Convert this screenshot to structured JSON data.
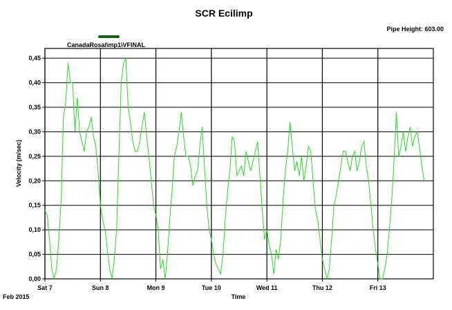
{
  "chart_data": {
    "type": "line",
    "title": "SCR Ecilimp",
    "annotation": "Pipe Height: 603.00",
    "xlabel": "Time",
    "ylabel": "Velocity (m/sec)",
    "x_sublabel": "Feb 2015",
    "ylim": [
      0,
      0.47
    ],
    "yticks": [
      0,
      0.05,
      0.1,
      0.15,
      0.2,
      0.25,
      0.3,
      0.35,
      0.4,
      0.45
    ],
    "ytick_labels": [
      "0,00",
      "0,05",
      "0,10",
      "0,15",
      "0,20",
      "0,25",
      "0,30",
      "0,35",
      "0,40",
      "0,45"
    ],
    "xlim": [
      "2015-02-07T00:00",
      "2015-02-14T00:00"
    ],
    "xticks": [
      "2015-02-07T00:00",
      "2015-02-08T00:00",
      "2015-02-09T00:00",
      "2015-02-10T00:00",
      "2015-02-11T00:00",
      "2015-02-12T00:00",
      "2015-02-13T00:00"
    ],
    "xtick_labels": [
      "Sat 7",
      "Sun 8",
      "Mon 9",
      "Tue 10",
      "Wed 11",
      "Thu 12",
      "Fri 13"
    ],
    "grid": true,
    "legend_position": "top-left",
    "series": [
      {
        "name": "CanadaRosal\\mp1\\VFINAL",
        "color": "#22dd22",
        "legend_color": "#1a5c1a",
        "points": [
          [
            "2015-02-07T00:00",
            0.14
          ],
          [
            "2015-02-07T01:00",
            0.13
          ],
          [
            "2015-02-07T02:00",
            0.08
          ],
          [
            "2015-02-07T03:00",
            0.02
          ],
          [
            "2015-02-07T04:00",
            0.0
          ],
          [
            "2015-02-07T05:00",
            0.02
          ],
          [
            "2015-02-07T06:00",
            0.08
          ],
          [
            "2015-02-07T07:00",
            0.16
          ],
          [
            "2015-02-07T08:00",
            0.33
          ],
          [
            "2015-02-07T09:00",
            0.36
          ],
          [
            "2015-02-07T10:00",
            0.44
          ],
          [
            "2015-02-07T11:00",
            0.4
          ],
          [
            "2015-02-07T12:00",
            0.4
          ],
          [
            "2015-02-07T13:00",
            0.3
          ],
          [
            "2015-02-07T14:00",
            0.37
          ],
          [
            "2015-02-07T15:00",
            0.3
          ],
          [
            "2015-02-07T16:00",
            0.28
          ],
          [
            "2015-02-07T17:00",
            0.26
          ],
          [
            "2015-02-07T18:00",
            0.3
          ],
          [
            "2015-02-07T19:00",
            0.31
          ],
          [
            "2015-02-07T20:00",
            0.33
          ],
          [
            "2015-02-07T21:00",
            0.29
          ],
          [
            "2015-02-07T22:00",
            0.27
          ],
          [
            "2015-02-07T23:00",
            0.22
          ],
          [
            "2015-02-08T00:00",
            0.15
          ],
          [
            "2015-02-08T01:00",
            0.12
          ],
          [
            "2015-02-08T02:00",
            0.1
          ],
          [
            "2015-02-08T03:00",
            0.06
          ],
          [
            "2015-02-08T04:00",
            0.02
          ],
          [
            "2015-02-08T05:00",
            0.0
          ],
          [
            "2015-02-08T06:00",
            0.04
          ],
          [
            "2015-02-08T07:00",
            0.1
          ],
          [
            "2015-02-08T08:00",
            0.25
          ],
          [
            "2015-02-08T09:00",
            0.4
          ],
          [
            "2015-02-08T10:00",
            0.44
          ],
          [
            "2015-02-08T11:00",
            0.45
          ],
          [
            "2015-02-08T12:00",
            0.35
          ],
          [
            "2015-02-08T13:00",
            0.32
          ],
          [
            "2015-02-08T14:00",
            0.28
          ],
          [
            "2015-02-08T15:00",
            0.26
          ],
          [
            "2015-02-08T16:00",
            0.26
          ],
          [
            "2015-02-08T17:00",
            0.28
          ],
          [
            "2015-02-08T18:00",
            0.31
          ],
          [
            "2015-02-08T19:00",
            0.34
          ],
          [
            "2015-02-08T20:00",
            0.29
          ],
          [
            "2015-02-08T21:00",
            0.25
          ],
          [
            "2015-02-08T22:00",
            0.2
          ],
          [
            "2015-02-08T23:00",
            0.15
          ],
          [
            "2015-02-09T00:00",
            0.13
          ],
          [
            "2015-02-09T01:00",
            0.1
          ],
          [
            "2015-02-09T02:00",
            0.02
          ],
          [
            "2015-02-09T03:00",
            0.04
          ],
          [
            "2015-02-09T04:00",
            0.0
          ],
          [
            "2015-02-09T05:00",
            0.05
          ],
          [
            "2015-02-09T06:00",
            0.12
          ],
          [
            "2015-02-09T07:00",
            0.18
          ],
          [
            "2015-02-09T08:00",
            0.25
          ],
          [
            "2015-02-09T09:00",
            0.27
          ],
          [
            "2015-02-09T10:00",
            0.3
          ],
          [
            "2015-02-09T11:00",
            0.34
          ],
          [
            "2015-02-09T12:00",
            0.29
          ],
          [
            "2015-02-09T13:00",
            0.25
          ],
          [
            "2015-02-09T14:00",
            0.25
          ],
          [
            "2015-02-09T15:00",
            0.23
          ],
          [
            "2015-02-09T16:00",
            0.19
          ],
          [
            "2015-02-09T17:00",
            0.21
          ],
          [
            "2015-02-09T18:00",
            0.22
          ],
          [
            "2015-02-09T19:00",
            0.27
          ],
          [
            "2015-02-09T20:00",
            0.31
          ],
          [
            "2015-02-09T21:00",
            0.23
          ],
          [
            "2015-02-09T22:00",
            0.15
          ],
          [
            "2015-02-09T23:00",
            0.1
          ],
          [
            "2015-02-10T00:00",
            0.08
          ],
          [
            "2015-02-10T01:00",
            0.05
          ],
          [
            "2015-02-10T02:00",
            0.03
          ],
          [
            "2015-02-10T03:00",
            0.02
          ],
          [
            "2015-02-10T04:00",
            0.01
          ],
          [
            "2015-02-10T05:00",
            0.05
          ],
          [
            "2015-02-10T06:00",
            0.12
          ],
          [
            "2015-02-10T07:00",
            0.18
          ],
          [
            "2015-02-10T08:00",
            0.22
          ],
          [
            "2015-02-10T09:00",
            0.29
          ],
          [
            "2015-02-10T10:00",
            0.28
          ],
          [
            "2015-02-10T11:00",
            0.21
          ],
          [
            "2015-02-10T12:00",
            0.22
          ],
          [
            "2015-02-10T13:00",
            0.23
          ],
          [
            "2015-02-10T14:00",
            0.21
          ],
          [
            "2015-02-10T15:00",
            0.26
          ],
          [
            "2015-02-10T16:00",
            0.24
          ],
          [
            "2015-02-10T17:00",
            0.22
          ],
          [
            "2015-02-10T18:00",
            0.24
          ],
          [
            "2015-02-10T19:00",
            0.26
          ],
          [
            "2015-02-10T20:00",
            0.28
          ],
          [
            "2015-02-10T21:00",
            0.21
          ],
          [
            "2015-02-10T22:00",
            0.14
          ],
          [
            "2015-02-10T23:00",
            0.08
          ],
          [
            "2015-02-11T00:00",
            0.1
          ],
          [
            "2015-02-11T01:00",
            0.07
          ],
          [
            "2015-02-11T02:00",
            0.05
          ],
          [
            "2015-02-11T03:00",
            0.01
          ],
          [
            "2015-02-11T04:00",
            0.06
          ],
          [
            "2015-02-11T05:00",
            0.04
          ],
          [
            "2015-02-11T06:00",
            0.08
          ],
          [
            "2015-02-11T07:00",
            0.16
          ],
          [
            "2015-02-11T08:00",
            0.22
          ],
          [
            "2015-02-11T09:00",
            0.26
          ],
          [
            "2015-02-11T10:00",
            0.32
          ],
          [
            "2015-02-11T11:00",
            0.27
          ],
          [
            "2015-02-11T12:00",
            0.22
          ],
          [
            "2015-02-11T13:00",
            0.24
          ],
          [
            "2015-02-11T14:00",
            0.21
          ],
          [
            "2015-02-11T15:00",
            0.25
          ],
          [
            "2015-02-11T16:00",
            0.2
          ],
          [
            "2015-02-11T17:00",
            0.23
          ],
          [
            "2015-02-11T18:00",
            0.27
          ],
          [
            "2015-02-11T19:00",
            0.26
          ],
          [
            "2015-02-11T20:00",
            0.2
          ],
          [
            "2015-02-11T21:00",
            0.14
          ],
          [
            "2015-02-11T22:00",
            0.12
          ],
          [
            "2015-02-11T23:00",
            0.08
          ],
          [
            "2015-02-12T00:00",
            0.04
          ],
          [
            "2015-02-12T01:00",
            0.02
          ],
          [
            "2015-02-12T02:00",
            0.0
          ],
          [
            "2015-02-12T03:00",
            0.02
          ],
          [
            "2015-02-12T04:00",
            0.08
          ],
          [
            "2015-02-12T05:00",
            0.15
          ],
          [
            "2015-02-12T06:00",
            0.17
          ],
          [
            "2015-02-12T07:00",
            0.2
          ],
          [
            "2015-02-12T08:00",
            0.23
          ],
          [
            "2015-02-12T09:00",
            0.26
          ],
          [
            "2015-02-12T10:00",
            0.26
          ],
          [
            "2015-02-12T11:00",
            0.24
          ],
          [
            "2015-02-12T12:00",
            0.22
          ],
          [
            "2015-02-12T13:00",
            0.25
          ],
          [
            "2015-02-12T14:00",
            0.26
          ],
          [
            "2015-02-12T15:00",
            0.22
          ],
          [
            "2015-02-12T16:00",
            0.24
          ],
          [
            "2015-02-12T17:00",
            0.27
          ],
          [
            "2015-02-12T18:00",
            0.28
          ],
          [
            "2015-02-12T19:00",
            0.23
          ],
          [
            "2015-02-12T20:00",
            0.2
          ],
          [
            "2015-02-12T21:00",
            0.15
          ],
          [
            "2015-02-12T22:00",
            0.1
          ],
          [
            "2015-02-12T23:00",
            0.06
          ],
          [
            "2015-02-13T00:00",
            0.03
          ],
          [
            "2015-02-13T01:00",
            0.0
          ],
          [
            "2015-02-13T02:00",
            0.0
          ],
          [
            "2015-02-13T03:00",
            0.02
          ],
          [
            "2015-02-13T04:00",
            0.05
          ],
          [
            "2015-02-13T05:00",
            0.1
          ],
          [
            "2015-02-13T06:00",
            0.16
          ],
          [
            "2015-02-13T07:00",
            0.24
          ],
          [
            "2015-02-13T08:00",
            0.34
          ],
          [
            "2015-02-13T09:00",
            0.25
          ],
          [
            "2015-02-13T10:00",
            0.27
          ],
          [
            "2015-02-13T11:00",
            0.3
          ],
          [
            "2015-02-13T12:00",
            0.26
          ],
          [
            "2015-02-13T13:00",
            0.29
          ],
          [
            "2015-02-13T14:00",
            0.31
          ],
          [
            "2015-02-13T15:00",
            0.27
          ],
          [
            "2015-02-13T16:00",
            0.29
          ],
          [
            "2015-02-13T17:00",
            0.3
          ],
          [
            "2015-02-13T18:00",
            0.27
          ],
          [
            "2015-02-13T19:00",
            0.23
          ],
          [
            "2015-02-13T20:00",
            0.2
          ]
        ]
      }
    ]
  }
}
